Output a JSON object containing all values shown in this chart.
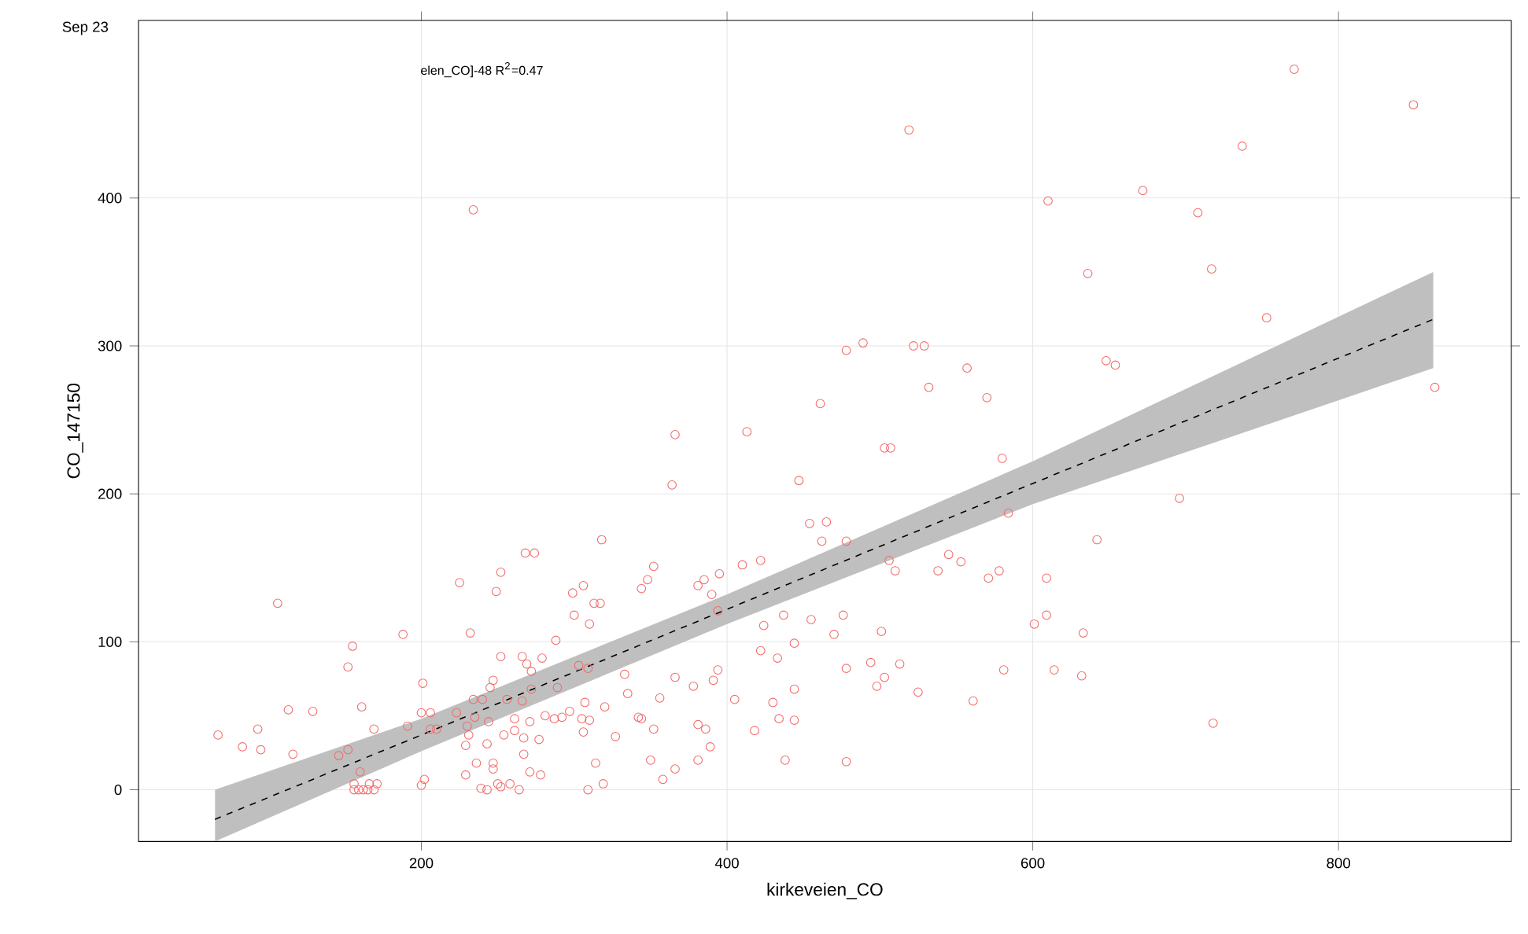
{
  "chart_data": {
    "type": "scatter",
    "title": "Sep 23",
    "xlabel": "kirkeveien_CO",
    "ylabel": "CO_147150",
    "annotations": [
      "elen_CO]-48 R$^{2}$=0.47"
    ],
    "xlim": [
      15,
      913
    ],
    "ylim": [
      -35,
      520
    ],
    "xticks": [
      200,
      400,
      600,
      800
    ],
    "yticks": [
      0,
      100,
      200,
      300,
      400
    ],
    "grid": true,
    "marker": "circle",
    "series": [
      {
        "type": "scatter",
        "color": "#f26b6b",
        "x": [
          67,
          83,
          93,
          95,
          106,
          113,
          116,
          129,
          146,
          152,
          152,
          155,
          160,
          161,
          169,
          188,
          191,
          200,
          202,
          201,
          200,
          206,
          206,
          210,
          223,
          225,
          229,
          232,
          236,
          243,
          247,
          247,
          249,
          252,
          252,
          266,
          268,
          274,
          269,
          272,
          279,
          288,
          289,
          299,
          306,
          300,
          310,
          313,
          317,
          318,
          307,
          305,
          310,
          306,
          297,
          292,
          287,
          281,
          278,
          271,
          267,
          267,
          277,
          271,
          261,
          261,
          254,
          244,
          235,
          231,
          229,
          230,
          234,
          240,
          245,
          247,
          256,
          266,
          272,
          303,
          309,
          258,
          264,
          250,
          243,
          239,
          309,
          319,
          156,
          159,
          162,
          165,
          169,
          156,
          166,
          171,
          352,
          344,
          348,
          333,
          335,
          366,
          378,
          356,
          391,
          394,
          381,
          385,
          390,
          395,
          394,
          320,
          327,
          342,
          344,
          352,
          381,
          386,
          389,
          381,
          350,
          358,
          366,
          405,
          418,
          422,
          424,
          433,
          430,
          434,
          444,
          438,
          437,
          444,
          444,
          455,
          470,
          476,
          478,
          478,
          410,
          422,
          462,
          454,
          465,
          478,
          501,
          494,
          498,
          503,
          513,
          525,
          506,
          510,
          538,
          545,
          553,
          561,
          571,
          642,
          578,
          609,
          609,
          601,
          633,
          581,
          614,
          632,
          718,
          771,
          849,
          519,
          737,
          672,
          610,
          708,
          636,
          717,
          753,
          478,
          489,
          522,
          529,
          557,
          532,
          570,
          648,
          654,
          863,
          461,
          366,
          413,
          503,
          507,
          580,
          447,
          364,
          696,
          584,
          234,
          314,
          252
        ],
        "values": [
          37,
          29,
          41,
          27,
          126,
          54,
          24,
          53,
          23,
          27,
          83,
          97,
          12,
          56,
          41,
          105,
          43,
          3,
          7,
          72,
          52,
          52,
          41,
          41,
          52,
          140,
          10,
          106,
          18,
          31,
          18,
          14,
          134,
          147,
          90,
          90,
          160,
          160,
          85,
          80,
          89,
          101,
          69,
          133,
          138,
          118,
          112,
          126,
          126,
          169,
          59,
          48,
          47,
          39,
          53,
          49,
          48,
          50,
          10,
          12,
          24,
          35,
          34,
          46,
          48,
          40,
          37,
          46,
          49,
          37,
          30,
          43,
          61,
          61,
          69,
          74,
          61,
          60,
          68,
          84,
          82,
          4,
          0,
          4,
          0,
          1,
          0,
          4,
          0,
          0,
          0,
          0,
          0,
          4,
          4,
          4,
          151,
          136,
          142,
          78,
          65,
          76,
          70,
          62,
          74,
          81,
          138,
          142,
          132,
          146,
          121,
          56,
          36,
          49,
          48,
          41,
          44,
          41,
          29,
          20,
          20,
          7,
          14,
          61,
          40,
          94,
          111,
          89,
          59,
          48,
          47,
          20,
          118,
          99,
          68,
          115,
          105,
          118,
          82,
          19,
          152,
          155,
          168,
          180,
          181,
          168,
          107,
          86,
          70,
          76,
          85,
          66,
          155,
          148,
          148,
          159,
          154,
          60,
          143,
          169,
          148,
          143,
          118,
          112,
          106,
          81,
          81,
          77,
          45,
          487,
          463,
          446,
          435,
          405,
          398,
          390,
          349,
          352,
          319,
          297,
          302,
          300,
          300,
          285,
          272,
          265,
          290,
          287,
          272,
          261,
          240,
          242,
          231,
          231,
          224,
          209,
          206,
          197,
          187,
          392,
          18,
          2
        ]
      },
      {
        "type": "line",
        "color": "#000000",
        "marker": "none",
        "line_style": "dashed",
        "x": [
          65,
          200,
          400,
          600,
          862
        ],
        "values": [
          -20,
          37,
          122,
          207,
          318
        ],
        "lower": [
          -35,
          26,
          112,
          193,
          285
        ],
        "upper": [
          0,
          48,
          132,
          222,
          350
        ]
      }
    ]
  }
}
